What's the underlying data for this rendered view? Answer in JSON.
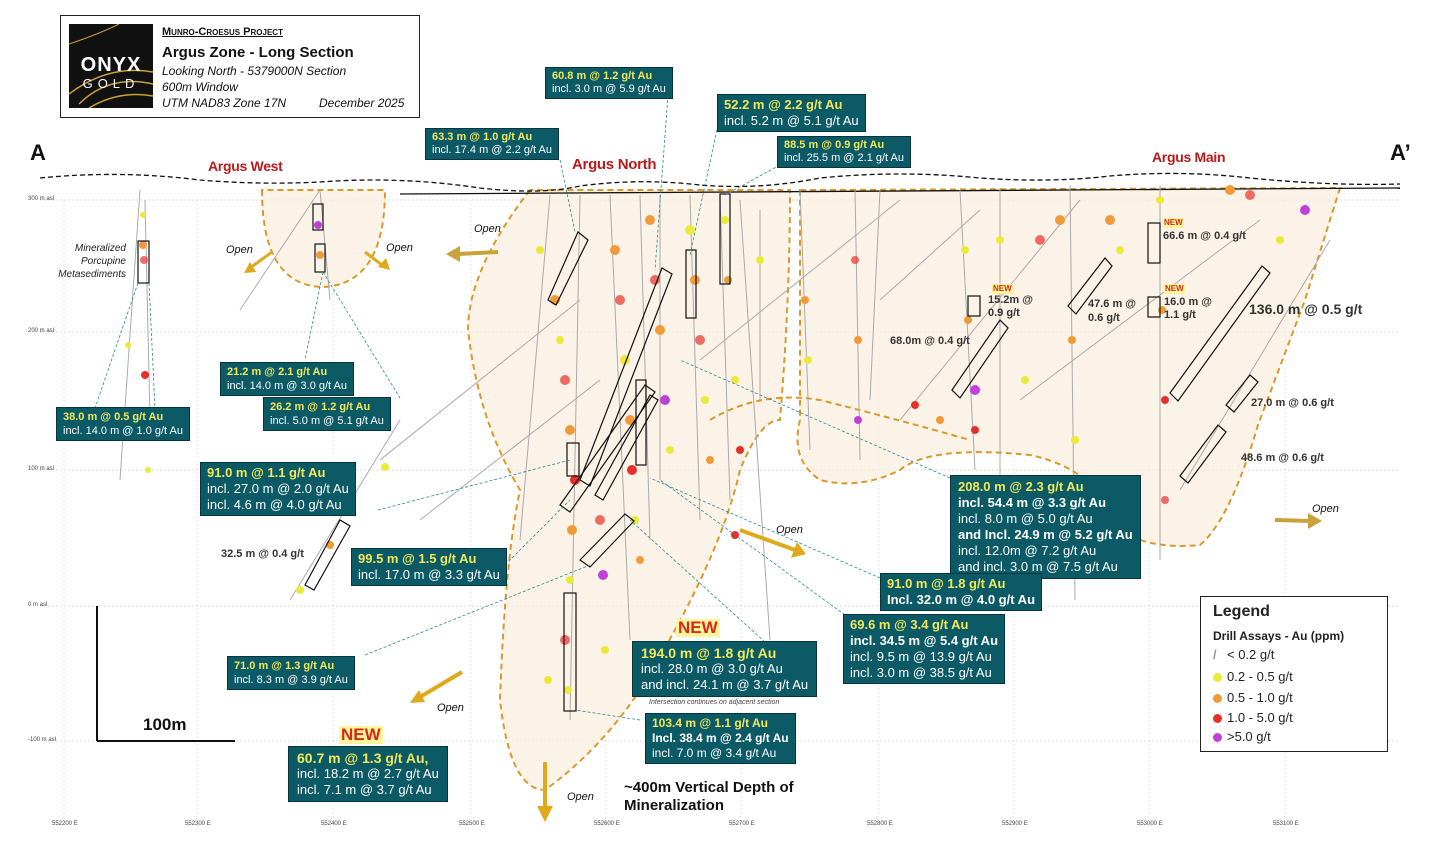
{
  "title_block": {
    "project": "Munro-Croesus Project",
    "zone": "Argus Zone - Long Section",
    "view": "Looking North - 5379000N Section",
    "window": "600m Window",
    "datum": "UTM NAD83 Zone 17N",
    "date": "December 2025",
    "logo_top": "ONYX",
    "logo_bottom": "GOLD"
  },
  "section_labels": {
    "left": "A",
    "right": "A’"
  },
  "zones": {
    "west": "Argus West",
    "north": "Argus North",
    "main": "Argus Main"
  },
  "open_label": "Open",
  "lithology_label": [
    "Mineralized",
    "Porcupine",
    "Metasediments"
  ],
  "new_label": "NEW",
  "elevation_labels": [
    "300 m asl",
    "200 m asl",
    "100 m asl",
    "0 m asl",
    "-100 m asl"
  ],
  "easting_labels": [
    "552200 E",
    "552300 E",
    "552400 E",
    "552500 E",
    "552600 E",
    "552700 E",
    "552800 E",
    "552900 E",
    "553000 E",
    "553100 E"
  ],
  "callouts": {
    "c1": {
      "l1": "60.8 m @ 1.2 g/t Au",
      "l2": "incl. 3.0 m @ 5.9 g/t Au"
    },
    "c2": {
      "l1": "52.2 m @ 2.2 g/t Au",
      "l2": "incl. 5.2 m @ 5.1 g/t Au"
    },
    "c3": {
      "l1": "63.3 m @ 1.0 g/t Au",
      "l2": "incl. 17.4 m @ 2.2 g/t Au"
    },
    "c4": {
      "l1": "88.5 m @ 0.9 g/t Au",
      "l2": "incl. 25.5 m @ 2.1 g/t Au"
    },
    "c5": {
      "l1": "21.2 m @ 2.1 g/t Au",
      "l2": "incl. 14.0 m @ 3.0 g/t Au"
    },
    "c6": {
      "l1": "26.2 m @ 1.2 g/t Au",
      "l2": "incl. 5.0 m @ 5.1 g/t Au"
    },
    "c7": {
      "l1": "38.0 m @ 0.5 g/t Au",
      "l2": "incl. 14.0 m @ 1.0 g/t Au"
    },
    "c8": {
      "l1": "91.0 m @ 1.1 g/t Au",
      "l2": "incl. 27.0 m @ 2.0 g/t Au",
      "l3": "incl. 4.6 m @ 4.0 g/t Au"
    },
    "c9": {
      "l1": "99.5 m @ 1.5 g/t Au",
      "l2": "incl. 17.0 m @ 3.3 g/t Au"
    },
    "c10": {
      "l1": "71.0 m @ 1.3 g/t Au",
      "l2": "incl. 8.3 m @ 3.9 g/t Au"
    },
    "c11": {
      "l1": "60.7 m @ 1.3 g/t Au,",
      "l2": "incl. 18.2 m @ 2.7 g/t Au",
      "l3": "incl. 7.1 m @ 3.7 g/t Au"
    },
    "c12": {
      "l1": "194.0 m @ 1.8 g/t Au",
      "l2": "incl. 28.0 m @ 3.0 g/t Au",
      "l3": "and incl. 24.1 m @ 3.7 g/t Au"
    },
    "c13": {
      "l1": "103.4 m @ 1.1 g/t Au",
      "l2": "Incl. 38.4 m @ 2.4 g/t Au",
      "l3": "incl. 7.0 m @ 3.4 g/t Au"
    },
    "c14": {
      "l1": "208.0 m @ 2.3 g/t Au",
      "l2": "incl. 54.4 m @ 3.3 g/t Au",
      "l3": "incl. 8.0 m @ 5.0 g/t Au",
      "l4": "and Incl. 24.9 m @ 5.2 g/t Au",
      "l5": "incl. 12.0m @ 7.2 g/t Au",
      "l6": "and incl. 3.0 m @ 7.5 g/t Au"
    },
    "c15": {
      "l1": "91.0 m @ 1.8 g/t Au",
      "l2": "Incl. 32.0 m @ 4.0 g/t Au"
    },
    "c16": {
      "l1": "69.6 m @ 3.4 g/t Au",
      "l2": "incl. 34.5 m @ 5.4 g/t Au",
      "l3": "incl. 9.5 m @ 13.9 g/t Au",
      "l4": "incl. 3.0 m @ 38.5 g/t Au"
    }
  },
  "annotations": {
    "a1": "32.5 m @ 0.4 g/t",
    "a2": "68.0m @ 0.4 g/t",
    "a3a": "15.2m @",
    "a3b": "0.9 g/t",
    "a4a": "47.6 m @",
    "a4b": "0.6 g/t",
    "a5": "66.6 m @ 0.4 g/t",
    "a6a": "16.0 m @",
    "a6b": "1.1 g/t",
    "a7": "136.0 m @ 0.5 g/t",
    "a8": "27.0 m @ 0.6 g/t",
    "a9": "48.6 m @ 0.6 g/t",
    "intersection_note": "Intersection continues on adjacent section"
  },
  "legend": {
    "title": "Legend",
    "subtitle": "Drill Assays - Au (ppm)",
    "items": [
      {
        "label": "< 0.2 g/t",
        "color": "#bdbdbd"
      },
      {
        "label": "0.2 - 0.5 g/t",
        "color": "#e9ea3a"
      },
      {
        "label": "0.5 - 1.0 g/t",
        "color": "#f09a3a"
      },
      {
        "label": "1.0 - 5.0 g/t",
        "color": "#e8302a"
      },
      {
        "label": ">5.0 g/t",
        "color": "#c040d8"
      }
    ]
  },
  "scale_bar": "100m",
  "depth_note": {
    "l1": "~400m Vertical Depth of",
    "l2": "Mineralization"
  },
  "colors": {
    "callout_bg": "#0b5a66",
    "highlight": "#f1e85a",
    "zone_text": "#b81b1b",
    "envelope": "#d99a2b",
    "arrow": "#e0a81c"
  }
}
